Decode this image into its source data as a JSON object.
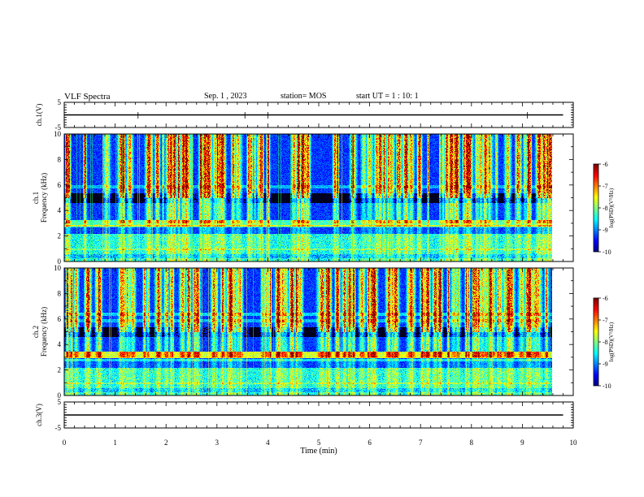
{
  "header": {
    "title": "VLF Spectra",
    "date": "Sep. 1 , 2023",
    "station": "station= MOS",
    "start_ut": "start UT =   1 : 10: 1"
  },
  "chart_data": [
    {
      "type": "line",
      "panel": "ch.1(V)",
      "ylabel": "ch.1(V)",
      "ylim": [
        -5,
        5
      ],
      "y_ticks": [
        "5",
        "-5"
      ],
      "xlim": [
        0,
        10
      ],
      "series": [
        {
          "x": [
            0,
            9.8
          ],
          "y": [
            0,
            0
          ]
        }
      ]
    },
    {
      "type": "heatmap",
      "panel": "ch.1 spectrogram",
      "ylabel": "ch.1 Frequency (kHz)",
      "ylim": [
        0,
        10
      ],
      "y_ticks": [
        "0",
        "2",
        "4",
        "6",
        "8",
        "10"
      ],
      "xlim": [
        0,
        10
      ],
      "data_end_x": 9.8,
      "colorbar": {
        "label": "log(PSD)(V²/Hz)",
        "range": [
          -10,
          -6
        ],
        "ticks": [
          "-6",
          "-7",
          "-8",
          "-9",
          "-10"
        ]
      }
    },
    {
      "type": "heatmap",
      "panel": "ch.2 spectrogram",
      "ylabel": "ch.2 Frequency (kHz)",
      "ylim": [
        0,
        10
      ],
      "y_ticks": [
        "0",
        "2",
        "4",
        "6",
        "8",
        "10"
      ],
      "xlim": [
        0,
        10
      ],
      "data_end_x": 9.8,
      "colorbar": {
        "label": "log(PSD)(V²/Hz)",
        "range": [
          -10,
          -6
        ],
        "ticks": [
          "-6",
          "-7",
          "-8",
          "-9",
          "-10"
        ]
      }
    },
    {
      "type": "line",
      "panel": "ch.3(V)",
      "ylabel": "ch.3(V)",
      "ylim": [
        -5,
        5
      ],
      "y_ticks": [
        "5",
        "-5"
      ],
      "xlim": [
        0,
        10
      ],
      "series": [
        {
          "x": [
            0,
            9.8
          ],
          "y": [
            0,
            0
          ]
        }
      ]
    }
  ],
  "x_axis": {
    "label": "Time (min)",
    "ticks": [
      "0",
      "1",
      "2",
      "3",
      "4",
      "5",
      "6",
      "7",
      "8",
      "9",
      "10"
    ]
  }
}
